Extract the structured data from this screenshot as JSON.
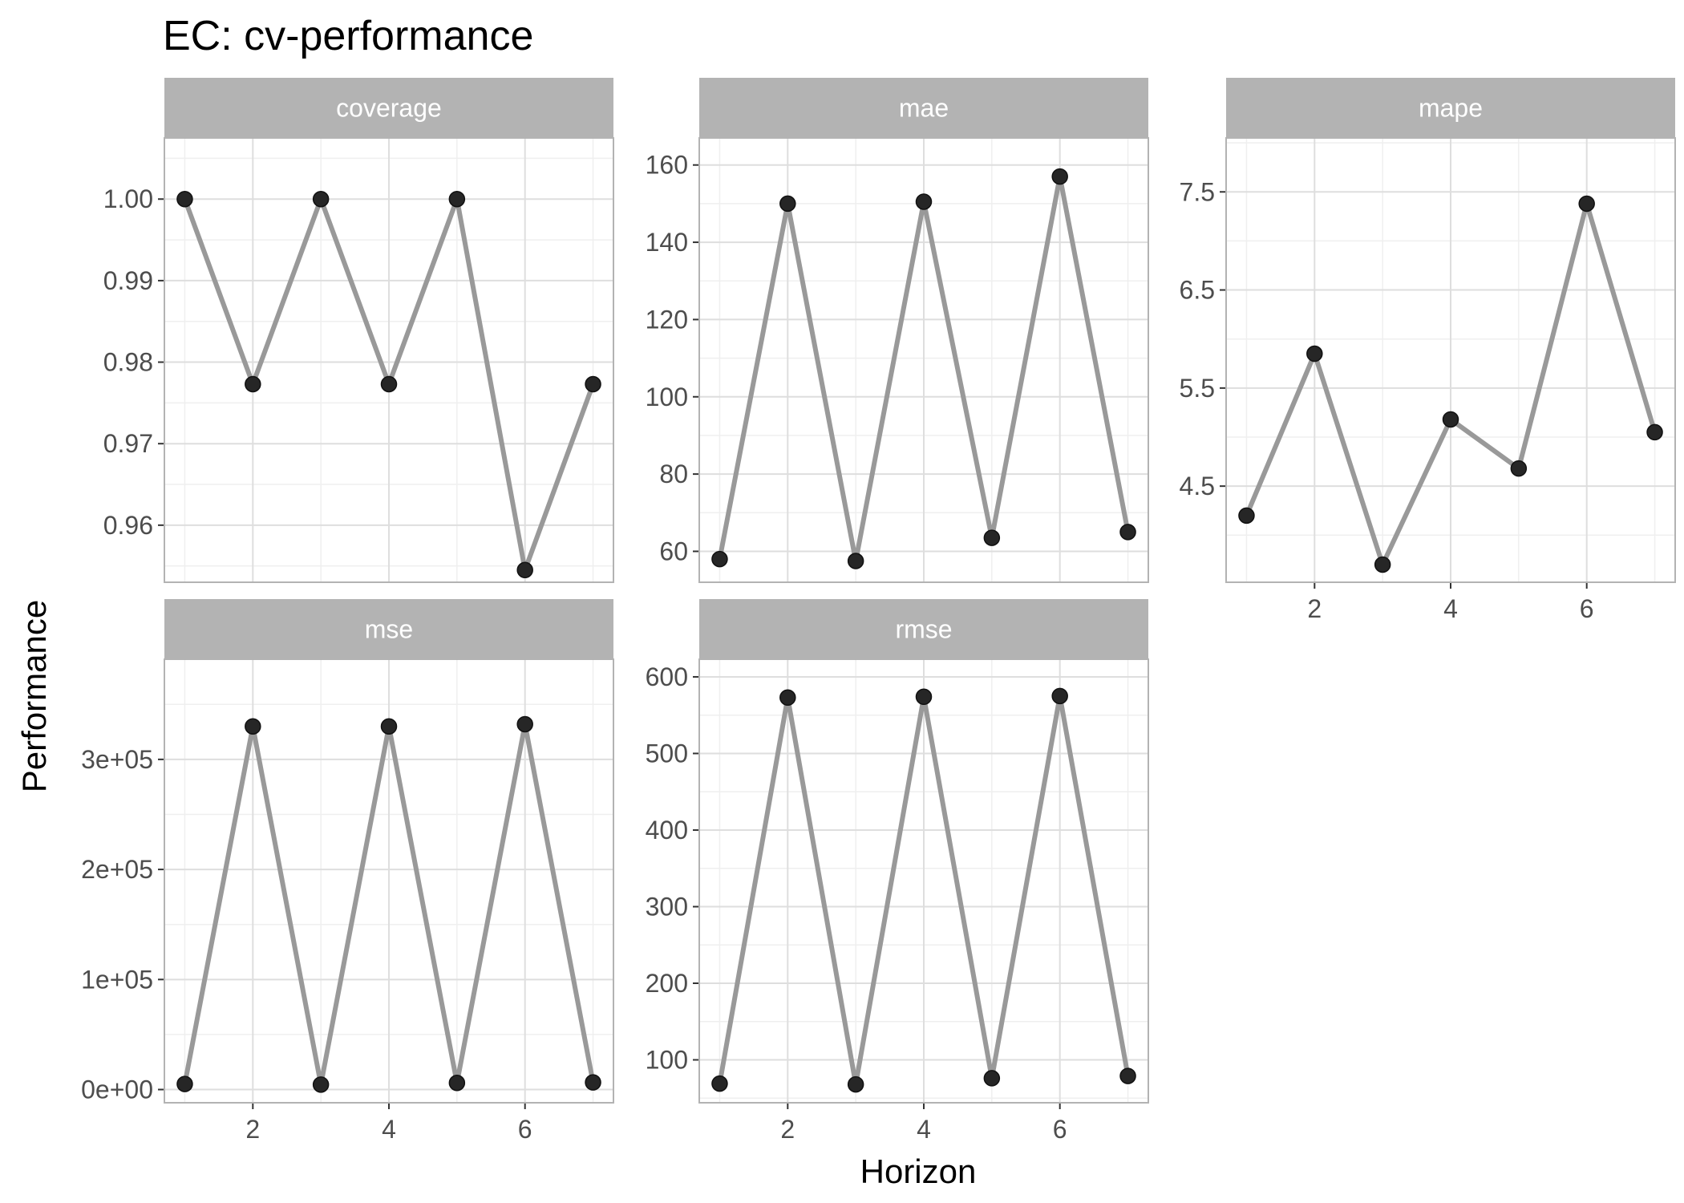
{
  "chart_data": {
    "type": "line",
    "title": "EC: cv-performance",
    "xlabel": "Horizon",
    "ylabel": "Performance",
    "x": [
      1,
      2,
      3,
      4,
      5,
      6,
      7
    ],
    "x_ticks": [
      2,
      4,
      6
    ],
    "x_tick_labels": [
      "2",
      "4",
      "6"
    ],
    "xlim": [
      0.7,
      7.3
    ],
    "grid": true,
    "point_markers": true,
    "panels": [
      {
        "name": "coverage",
        "values": [
          1.0,
          0.9773,
          1.0,
          0.9773,
          1.0,
          0.9545,
          0.9773
        ],
        "ylim": [
          0.953,
          1.0075
        ],
        "y_ticks": [
          0.96,
          0.97,
          0.98,
          0.99,
          1.0
        ],
        "y_tick_labels": [
          "0.96",
          "0.97",
          "0.98",
          "0.99",
          "1.00"
        ]
      },
      {
        "name": "mae",
        "values": [
          58,
          150,
          57.5,
          150.5,
          63.5,
          157,
          65
        ],
        "ylim": [
          52,
          167
        ],
        "y_ticks": [
          60,
          80,
          100,
          120,
          140,
          160
        ],
        "y_tick_labels": [
          "60",
          "80",
          "100",
          "120",
          "140",
          "160"
        ]
      },
      {
        "name": "mape",
        "values": [
          4.2,
          5.85,
          3.7,
          5.18,
          4.68,
          7.38,
          5.05
        ],
        "ylim": [
          3.52,
          8.05
        ],
        "y_ticks": [
          4.5,
          5.5,
          6.5,
          7.5
        ],
        "y_tick_labels": [
          "4.5",
          "5.5",
          "6.5",
          "7.5"
        ]
      },
      {
        "name": "mse",
        "values": [
          5000,
          330000,
          4500,
          330000,
          6000,
          332000,
          6500
        ],
        "ylim": [
          -12000,
          391000
        ],
        "y_ticks": [
          0,
          100000,
          200000,
          300000
        ],
        "y_tick_labels": [
          "0e+00",
          "1e+05",
          "2e+05",
          "3e+05"
        ]
      },
      {
        "name": "rmse",
        "values": [
          69,
          573,
          68,
          574,
          76,
          575,
          79
        ],
        "ylim": [
          44,
          623
        ],
        "y_ticks": [
          100,
          200,
          300,
          400,
          500,
          600
        ],
        "y_tick_labels": [
          "100",
          "200",
          "300",
          "400",
          "500",
          "600"
        ]
      }
    ],
    "colors": {
      "line": "#999999",
      "point": "#262626",
      "strip_bg": "#b3b3b3",
      "strip_text": "#ffffff",
      "panel_border": "#b3b3b3",
      "grid_major": "#dedede",
      "grid_minor": "#efefef",
      "tick_text": "#4d4d4d"
    }
  }
}
